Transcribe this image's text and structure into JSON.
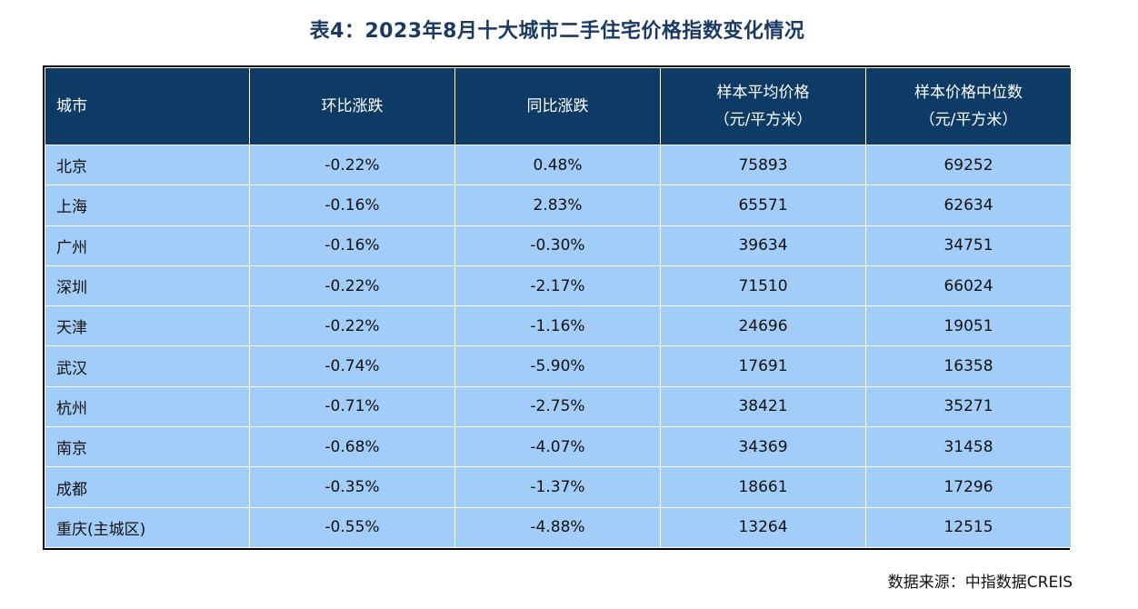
{
  "title": "表4：2023年8月十大城市二手住宅价格指数变化情况",
  "table": {
    "headers": [
      {
        "line1": "城市",
        "line2": ""
      },
      {
        "line1": "环比涨跌",
        "line2": ""
      },
      {
        "line1": "同比涨跌",
        "line2": ""
      },
      {
        "line1": "样本平均价格",
        "line2": "（元/平方米）"
      },
      {
        "line1": "样本价格中位数",
        "line2": "（元/平方米）"
      }
    ],
    "rows": [
      [
        "北京",
        "-0.22%",
        "0.48%",
        "75893",
        "69252"
      ],
      [
        "上海",
        "-0.16%",
        "2.83%",
        "65571",
        "62634"
      ],
      [
        "广州",
        "-0.16%",
        "-0.30%",
        "39634",
        "34751"
      ],
      [
        "深圳",
        "-0.22%",
        "-2.17%",
        "71510",
        "66024"
      ],
      [
        "天津",
        "-0.22%",
        "-1.16%",
        "24696",
        "19051"
      ],
      [
        "武汉",
        "-0.74%",
        "-5.90%",
        "17691",
        "16358"
      ],
      [
        "杭州",
        "-0.71%",
        "-2.75%",
        "38421",
        "35271"
      ],
      [
        "南京",
        "-0.68%",
        "-4.07%",
        "34369",
        "31458"
      ],
      [
        "成都",
        "-0.35%",
        "-1.37%",
        "18661",
        "17296"
      ],
      [
        "重庆(主城区)",
        "-0.55%",
        "-4.88%",
        "13264",
        "12515"
      ]
    ]
  },
  "source": "数据来源：中指数据CREIS",
  "colors": {
    "header_bg": "#0d3b66",
    "row_bg": "#a3cdf9",
    "title_color": "#1b3a63"
  }
}
